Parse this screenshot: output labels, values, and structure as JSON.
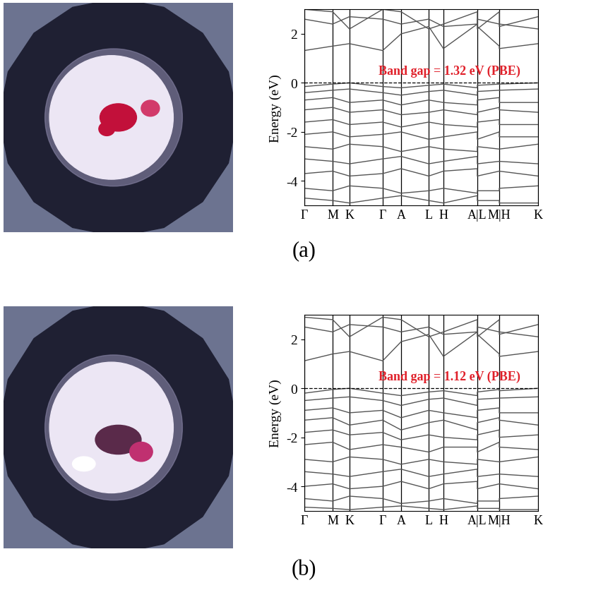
{
  "chart_data": [
    {
      "type": "line",
      "title": "(a)",
      "ylabel": "Energy (eV)",
      "annotation": "Band gap = 1.32 eV (PBE)",
      "hline": 0,
      "grid": true,
      "color": "#555555",
      "x": [
        0,
        0.121,
        0.193,
        0.335,
        0.414,
        0.532,
        0.595,
        0.74,
        0.74,
        0.834,
        0.834,
        1.0
      ],
      "xlim": [
        0,
        1.0
      ],
      "xticks": [
        {
          "value": 0,
          "label": "Γ"
        },
        {
          "value": 0.121,
          "label": "M"
        },
        {
          "value": 0.193,
          "label": "K"
        },
        {
          "value": 0.335,
          "label": "Γ"
        },
        {
          "value": 0.414,
          "label": "A"
        },
        {
          "value": 0.532,
          "label": "L"
        },
        {
          "value": 0.595,
          "label": "H"
        },
        {
          "value": 0.74,
          "label": "A|L"
        },
        {
          "value": 0.834,
          "label": "M|H"
        },
        {
          "value": 1.0,
          "label": "K"
        }
      ],
      "ylim": [
        -5,
        3
      ],
      "yticks": [
        -4,
        -2,
        0,
        2
      ],
      "series": [
        {
          "values": [
            1.32,
            1.5,
            1.6,
            1.32,
            2.0,
            2.3,
            1.4,
            2.4,
            2.3,
            1.5,
            1.4,
            1.6
          ]
        },
        {
          "values": [
            2.6,
            2.4,
            2.7,
            2.6,
            2.4,
            2.6,
            2.3,
            2.4,
            2.6,
            2.4,
            2.3,
            2.7
          ]
        },
        {
          "values": [
            3.0,
            2.9,
            2.2,
            3.0,
            2.9,
            2.2,
            2.4,
            2.9,
            2.2,
            2.9,
            2.4,
            2.2
          ]
        },
        {
          "values": [
            -0.15,
            -0.05,
            0.0,
            -0.15,
            -0.2,
            -0.1,
            -0.05,
            -0.2,
            -0.1,
            -0.05,
            -0.05,
            0.0
          ]
        },
        {
          "values": [
            -0.4,
            -0.3,
            -0.25,
            -0.4,
            -0.5,
            -0.35,
            -0.3,
            -0.5,
            -0.35,
            -0.3,
            -0.3,
            -0.25
          ]
        },
        {
          "values": [
            -0.7,
            -0.6,
            -0.8,
            -0.7,
            -0.9,
            -0.7,
            -0.8,
            -0.9,
            -0.7,
            -0.6,
            -0.8,
            -0.8
          ]
        },
        {
          "values": [
            -1.1,
            -1.0,
            -1.2,
            -1.1,
            -1.3,
            -1.2,
            -1.1,
            -1.3,
            -1.2,
            -1.0,
            -1.1,
            -1.2
          ]
        },
        {
          "values": [
            -1.6,
            -1.5,
            -1.7,
            -1.6,
            -1.8,
            -1.6,
            -1.7,
            -1.8,
            -1.6,
            -1.5,
            -1.7,
            -1.7
          ]
        },
        {
          "values": [
            -2.1,
            -2.0,
            -2.2,
            -2.1,
            -2.0,
            -2.3,
            -2.2,
            -2.0,
            -2.3,
            -2.0,
            -2.2,
            -2.2
          ]
        },
        {
          "values": [
            -2.6,
            -2.7,
            -2.5,
            -2.6,
            -2.8,
            -2.6,
            -2.7,
            -2.8,
            -2.6,
            -2.7,
            -2.7,
            -2.5
          ]
        },
        {
          "values": [
            -3.1,
            -3.2,
            -3.3,
            -3.1,
            -3.0,
            -3.3,
            -3.2,
            -3.0,
            -3.3,
            -3.2,
            -3.2,
            -3.3
          ]
        },
        {
          "values": [
            -3.7,
            -3.6,
            -3.8,
            -3.7,
            -3.5,
            -3.8,
            -3.6,
            -3.5,
            -3.8,
            -3.6,
            -3.6,
            -3.8
          ]
        },
        {
          "values": [
            -4.3,
            -4.4,
            -4.2,
            -4.3,
            -4.5,
            -4.4,
            -4.3,
            -4.5,
            -4.4,
            -4.4,
            -4.3,
            -4.2
          ]
        },
        {
          "values": [
            -4.7,
            -4.8,
            -4.9,
            -4.7,
            -4.6,
            -4.8,
            -4.9,
            -4.6,
            -4.8,
            -4.8,
            -4.9,
            -4.9
          ]
        }
      ]
    },
    {
      "type": "line",
      "title": "(b)",
      "ylabel": "Energy (eV)",
      "annotation": "Band gap = 1.12 eV (PBE)",
      "hline": 0,
      "grid": true,
      "color": "#555555",
      "x": [
        0,
        0.121,
        0.193,
        0.335,
        0.414,
        0.532,
        0.595,
        0.74,
        0.74,
        0.834,
        0.834,
        1.0
      ],
      "xlim": [
        0,
        1.0
      ],
      "xticks": [
        {
          "value": 0,
          "label": "Γ"
        },
        {
          "value": 0.121,
          "label": "M"
        },
        {
          "value": 0.193,
          "label": "K"
        },
        {
          "value": 0.335,
          "label": "Γ"
        },
        {
          "value": 0.414,
          "label": "A"
        },
        {
          "value": 0.532,
          "label": "L"
        },
        {
          "value": 0.595,
          "label": "H"
        },
        {
          "value": 0.74,
          "label": "A|L"
        },
        {
          "value": 0.834,
          "label": "M|H"
        },
        {
          "value": 1.0,
          "label": "K"
        }
      ],
      "ylim": [
        -5,
        3
      ],
      "yticks": [
        -4,
        -2,
        0,
        2
      ],
      "series": [
        {
          "values": [
            1.12,
            1.4,
            1.5,
            1.12,
            1.9,
            2.2,
            1.3,
            2.3,
            2.2,
            1.4,
            1.3,
            1.5
          ]
        },
        {
          "values": [
            2.5,
            2.3,
            2.6,
            2.5,
            2.3,
            2.5,
            2.2,
            2.3,
            2.5,
            2.3,
            2.2,
            2.6
          ]
        },
        {
          "values": [
            2.9,
            2.8,
            2.1,
            2.9,
            2.8,
            2.1,
            2.3,
            2.8,
            2.1,
            2.8,
            2.3,
            2.1
          ]
        },
        {
          "values": [
            -0.2,
            -0.05,
            0.0,
            -0.2,
            -0.3,
            -0.15,
            -0.1,
            -0.3,
            -0.15,
            -0.05,
            -0.1,
            0.0
          ]
        },
        {
          "values": [
            -0.5,
            -0.4,
            -0.35,
            -0.5,
            -0.7,
            -0.45,
            -0.4,
            -0.7,
            -0.45,
            -0.4,
            -0.4,
            -0.35
          ]
        },
        {
          "values": [
            -0.9,
            -0.8,
            -1.0,
            -0.9,
            -1.2,
            -0.9,
            -1.0,
            -1.2,
            -0.9,
            -0.8,
            -1.0,
            -1.0
          ]
        },
        {
          "values": [
            -1.3,
            -1.2,
            -1.5,
            -1.3,
            -1.7,
            -1.4,
            -1.3,
            -1.7,
            -1.4,
            -1.2,
            -1.3,
            -1.5
          ]
        },
        {
          "values": [
            -1.8,
            -1.7,
            -1.9,
            -1.8,
            -2.1,
            -1.9,
            -2.0,
            -2.1,
            -1.9,
            -1.7,
            -2.0,
            -1.9
          ]
        },
        {
          "values": [
            -2.3,
            -2.2,
            -2.5,
            -2.3,
            -2.4,
            -2.6,
            -2.4,
            -2.4,
            -2.6,
            -2.2,
            -2.4,
            -2.5
          ]
        },
        {
          "values": [
            -2.9,
            -3.0,
            -2.8,
            -2.9,
            -3.1,
            -2.9,
            -3.0,
            -3.1,
            -2.9,
            -3.0,
            -3.0,
            -2.8
          ]
        },
        {
          "values": [
            -3.4,
            -3.5,
            -3.6,
            -3.4,
            -3.3,
            -3.6,
            -3.5,
            -3.3,
            -3.6,
            -3.5,
            -3.5,
            -3.6
          ]
        },
        {
          "values": [
            -4.0,
            -3.9,
            -4.1,
            -4.0,
            -3.8,
            -4.1,
            -3.9,
            -3.8,
            -4.1,
            -3.9,
            -3.9,
            -4.1
          ]
        },
        {
          "values": [
            -4.5,
            -4.6,
            -4.4,
            -4.5,
            -4.7,
            -4.6,
            -4.5,
            -4.7,
            -4.6,
            -4.6,
            -4.5,
            -4.4
          ]
        },
        {
          "values": [
            -4.85,
            -4.9,
            -4.95,
            -4.85,
            -4.8,
            -4.9,
            -4.95,
            -4.8,
            -4.9,
            -4.9,
            -4.95,
            -4.95
          ]
        }
      ]
    }
  ]
}
